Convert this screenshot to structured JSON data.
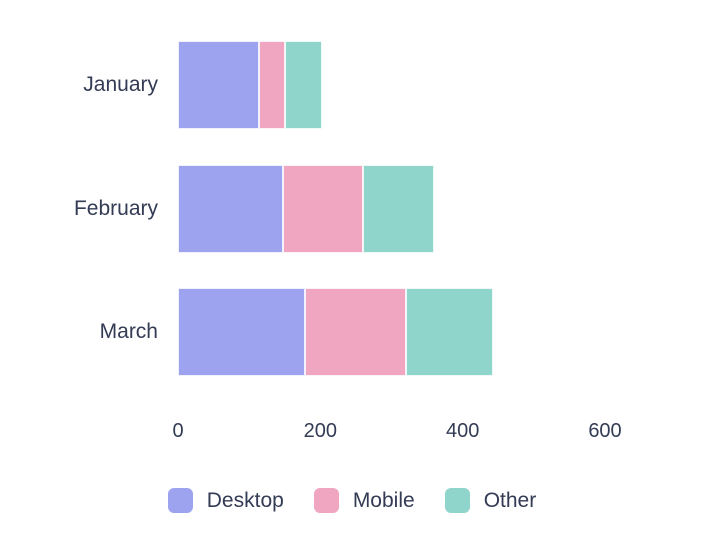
{
  "chart_data": {
    "type": "bar",
    "orientation": "horizontal",
    "stacked": true,
    "title": "",
    "xlabel": "",
    "ylabel": "",
    "categories": [
      "January",
      "February",
      "March"
    ],
    "series": [
      {
        "name": "Desktop",
        "color": "#9EA3F0",
        "values": [
          114,
          148,
          179
        ]
      },
      {
        "name": "Mobile",
        "color": "#F0A6C1",
        "values": [
          37,
          112,
          142
        ]
      },
      {
        "name": "Other",
        "color": "#8FD5CC",
        "values": [
          52,
          100,
          122
        ]
      }
    ],
    "x_ticks": [
      0,
      200,
      400,
      600
    ],
    "xlim": [
      0,
      600
    ],
    "grid": false,
    "axis_line": false,
    "legend_position": "bottom",
    "text_color": "#333B55",
    "background_color": "#FFFFFF"
  }
}
